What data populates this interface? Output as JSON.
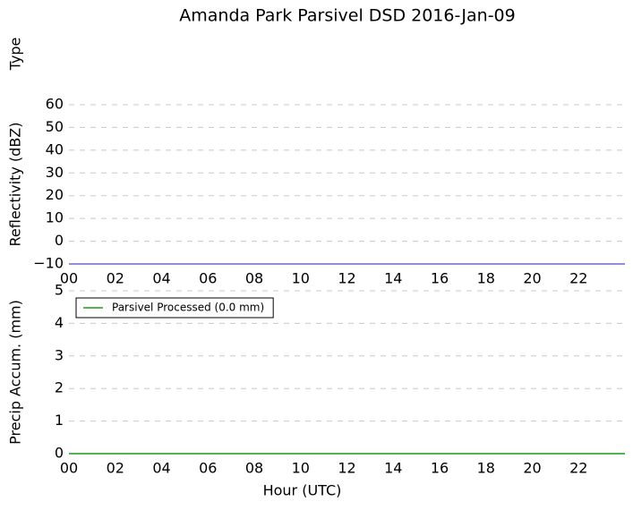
{
  "chart_data": [
    {
      "type": "empty",
      "title": "Amanda Park Parsivel DSD 2016-Jan-09",
      "ylabel": "Type"
    },
    {
      "type": "line",
      "ylabel": "Reflectivity (dBZ)",
      "x": [
        0,
        24
      ],
      "series": [
        {
          "color": "#6a6ad0",
          "values": [
            -10,
            -10
          ]
        }
      ],
      "xlim": [
        0,
        24
      ],
      "xticks": [
        {
          "value": 0,
          "label": "00"
        },
        {
          "value": 2,
          "label": "02"
        },
        {
          "value": 4,
          "label": "04"
        },
        {
          "value": 6,
          "label": "06"
        },
        {
          "value": 8,
          "label": "08"
        },
        {
          "value": 10,
          "label": "10"
        },
        {
          "value": 12,
          "label": "12"
        },
        {
          "value": 14,
          "label": "14"
        },
        {
          "value": 16,
          "label": "16"
        },
        {
          "value": 18,
          "label": "18"
        },
        {
          "value": 20,
          "label": "20"
        },
        {
          "value": 22,
          "label": "22"
        }
      ],
      "ylim": [
        -10,
        60
      ],
      "yticks": [
        {
          "value": -10,
          "label": "−10"
        },
        0,
        10,
        20,
        30,
        40,
        50,
        60
      ],
      "grid": true
    },
    {
      "type": "line",
      "ylabel": "Precip Accum. (mm)",
      "xlabel": "Hour (UTC)",
      "x": [
        0,
        24
      ],
      "series": [
        {
          "name": "Parsivel Processed (0.0 mm)",
          "color": "#1a9a1a",
          "values": [
            0,
            0
          ]
        }
      ],
      "xlim": [
        0,
        24
      ],
      "xticks": [
        {
          "value": 0,
          "label": "00"
        },
        {
          "value": 2,
          "label": "02"
        },
        {
          "value": 4,
          "label": "04"
        },
        {
          "value": 6,
          "label": "06"
        },
        {
          "value": 8,
          "label": "08"
        },
        {
          "value": 10,
          "label": "10"
        },
        {
          "value": 12,
          "label": "12"
        },
        {
          "value": 14,
          "label": "14"
        },
        {
          "value": 16,
          "label": "16"
        },
        {
          "value": 18,
          "label": "18"
        },
        {
          "value": 20,
          "label": "20"
        },
        {
          "value": 22,
          "label": "22"
        }
      ],
      "ylim": [
        0,
        5
      ],
      "yticks": [
        0,
        1,
        2,
        3,
        4,
        5
      ],
      "grid": true,
      "legend": "upper left"
    }
  ]
}
